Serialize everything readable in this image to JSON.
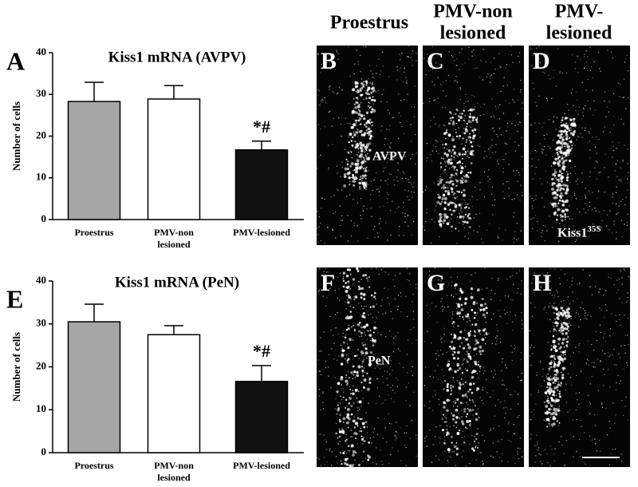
{
  "chart_data": [
    {
      "type": "bar",
      "letter": "A",
      "title": "Kiss1 mRNA (AVPV)",
      "y_label": "Number of cells",
      "categories": [
        "Proestrus",
        "PMV-non lesioned",
        "PMV-lesioned"
      ],
      "values": [
        28.3,
        28.9,
        16.7
      ],
      "errors": [
        4.6,
        3.2,
        2.1
      ],
      "colors": [
        "#a6a6a6",
        "#ffffff",
        "#111111"
      ],
      "ylim": [
        0,
        40
      ],
      "yticks": [
        0,
        10,
        20,
        30,
        40
      ],
      "annotations": [
        {
          "text": "*#",
          "x": "PMV-lesioned"
        }
      ]
    },
    {
      "type": "bar",
      "letter": "E",
      "title": "Kiss1 mRNA (PeN)",
      "y_label": "Number of cells",
      "categories": [
        "Proestrus",
        "PMV-non lesioned",
        "PMV-lesioned"
      ],
      "values": [
        30.5,
        27.5,
        16.6
      ],
      "errors": [
        4.1,
        2.1,
        3.7
      ],
      "colors": [
        "#a6a6a6",
        "#ffffff",
        "#111111"
      ],
      "ylim": [
        0,
        40
      ],
      "yticks": [
        0,
        10,
        20,
        30,
        40
      ],
      "annotations": [
        {
          "text": "*#",
          "x": "PMV-lesioned"
        }
      ]
    }
  ],
  "column_headers": [
    [
      "Proestrus"
    ],
    [
      "PMV-non",
      "lesioned"
    ],
    [
      "PMV-",
      "lesioned"
    ]
  ],
  "panels": [
    {
      "letter": "B",
      "label": "AVPV"
    },
    {
      "letter": "C"
    },
    {
      "letter": "D",
      "label": "Kiss1",
      "label_sup": "35S"
    },
    {
      "letter": "F",
      "label": "PeN"
    },
    {
      "letter": "G"
    },
    {
      "letter": "H"
    }
  ]
}
